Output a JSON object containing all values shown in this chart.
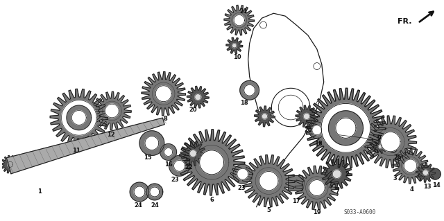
{
  "background_color": "#ffffff",
  "part_label": "S033-A0600",
  "fr_label": "FR.",
  "fig_width": 6.4,
  "fig_height": 3.19,
  "dpi": 100,
  "line_color": "#1a1a1a",
  "text_color": "#111111",
  "label_fontsize": 6.0,
  "gear_fill": "#888888",
  "gear_dark": "#333333",
  "gear_light": "#cccccc"
}
